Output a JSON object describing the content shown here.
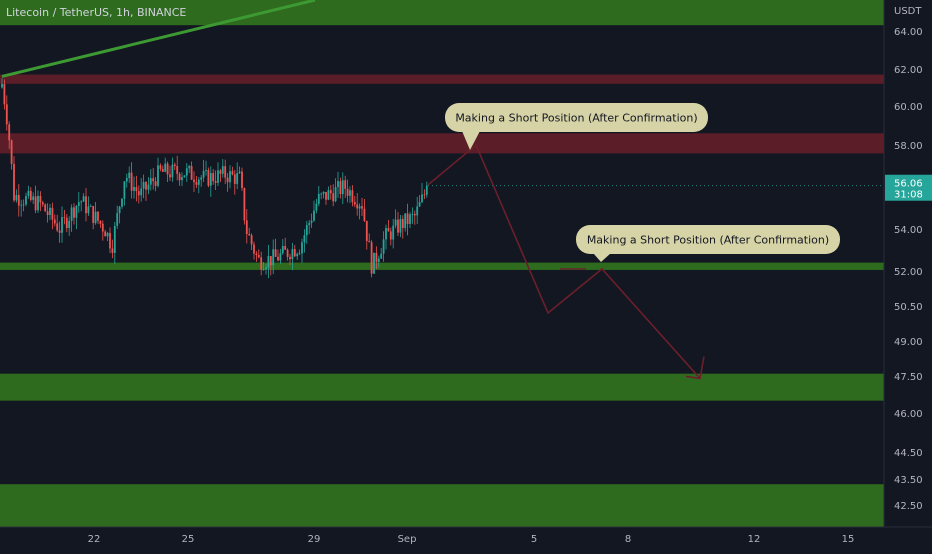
{
  "header": {
    "title": "Litecoin / TetherUS, 1h, BINANCE"
  },
  "colors": {
    "background": "#131722",
    "up_candle": "#26a69a",
    "down_candle": "#ef5350",
    "green_zone": "#2e6b1f",
    "red_zone": "#5b1d28",
    "trend_line": "#3d9a32",
    "projection_line": "#6b1f2b",
    "callout_bg": "#d6d3a6",
    "price_tag": "#26a69a",
    "axis_text": "#b2b5be"
  },
  "current_price": {
    "price_label": "56.06",
    "countdown_label": "31:08"
  },
  "callouts": [
    {
      "text": "Making a Short Position (After Confirmation)"
    },
    {
      "text": "Making a Short Position (After Confirmation)"
    }
  ],
  "chart_data": {
    "type": "candlestick",
    "title": "Litecoin / TetherUS, 1h, BINANCE",
    "y_axis": {
      "unit": "USDT",
      "ticks": [
        "64.00",
        "62.00",
        "60.00",
        "58.00",
        "56.00",
        "54.00",
        "52.00",
        "50.50",
        "49.00",
        "47.50",
        "46.00",
        "44.50",
        "43.50",
        "42.50"
      ]
    },
    "x_axis": {
      "ticks": [
        "22",
        "25",
        "29",
        "Sep",
        "5",
        "8",
        "12",
        "15"
      ]
    },
    "zones": [
      {
        "kind": "green",
        "from": 64.3,
        "to": 65.6
      },
      {
        "kind": "red",
        "from": 61.2,
        "to": 61.7
      },
      {
        "kind": "red",
        "from": 57.6,
        "to": 58.6
      },
      {
        "kind": "green",
        "from": 52.05,
        "to": 52.4
      },
      {
        "kind": "green",
        "from": 46.5,
        "to": 47.6
      },
      {
        "kind": "green",
        "from": 41.8,
        "to": 43.3
      }
    ],
    "price_range": {
      "low": 51.6,
      "high": 61.5,
      "last": 56.06
    },
    "projection_path": [
      56.1,
      58.0,
      50.2,
      52.1,
      47.4
    ]
  }
}
